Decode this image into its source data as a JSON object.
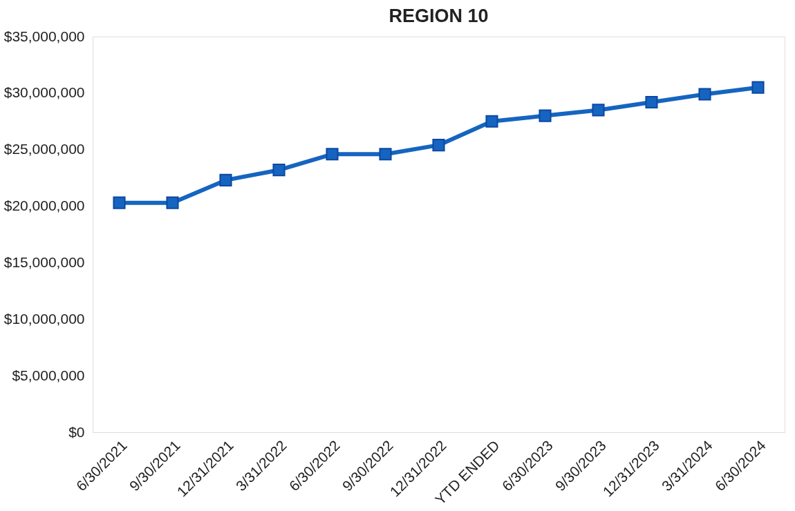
{
  "chart_data": {
    "type": "line",
    "title": "REGION 10",
    "categories": [
      "6/30/2021",
      "9/30/2021",
      "12/31/2021",
      "3/31/2022",
      "6/30/2022",
      "9/30/2022",
      "12/31/2022",
      "YTD ENDED",
      "6/30/2023",
      "9/30/2023",
      "12/31/2023",
      "3/31/2024",
      "6/30/2024"
    ],
    "series": [
      {
        "color": "#1565c0",
        "values": [
          20300000,
          20300000,
          22300000,
          23200000,
          24600000,
          24600000,
          25400000,
          27500000,
          28000000,
          28500000,
          29200000,
          29900000,
          30500000
        ]
      }
    ],
    "ylim": [
      0,
      35000000
    ],
    "yticks": [
      {
        "value": 0,
        "label": "$0"
      },
      {
        "value": 5000000,
        "label": "$5,000,000"
      },
      {
        "value": 10000000,
        "label": "$10,000,000"
      },
      {
        "value": 15000000,
        "label": "$15,000,000"
      },
      {
        "value": 20000000,
        "label": "$20,000,000"
      },
      {
        "value": 25000000,
        "label": "$25,000,000"
      },
      {
        "value": 30000000,
        "label": "$30,000,000"
      },
      {
        "value": 35000000,
        "label": "$35,000,000"
      }
    ],
    "grid": false,
    "marker": "square",
    "line_style": "solid"
  }
}
